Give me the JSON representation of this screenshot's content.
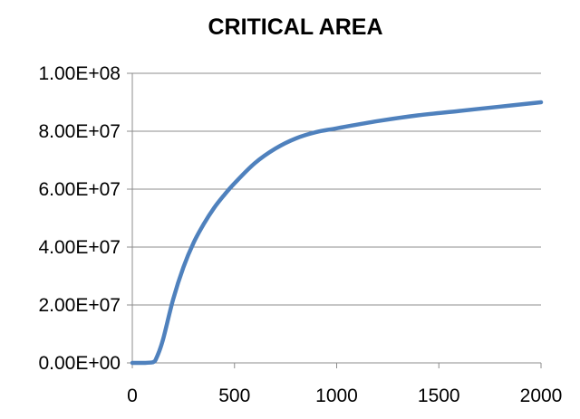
{
  "chart_data": {
    "type": "line",
    "title": "CRITICAL AREA",
    "xlabel": "",
    "ylabel": "",
    "xlim": [
      0,
      2000
    ],
    "ylim": [
      0,
      100000000
    ],
    "x_ticks": [
      0,
      500,
      1000,
      1500,
      2000
    ],
    "x_tick_labels": [
      "0",
      "500",
      "1000",
      "1500",
      "2000"
    ],
    "y_ticks": [
      0,
      20000000,
      40000000,
      60000000,
      80000000,
      100000000
    ],
    "y_tick_labels": [
      "0.00E+00",
      "2.00E+07",
      "4.00E+07",
      "6.00E+07",
      "8.00E+07",
      "1.00E+08"
    ],
    "grid": "horizontal",
    "legend": "none",
    "series_color": "#4f81bd",
    "series": [
      {
        "x": [
          0,
          50,
          100,
          120,
          150,
          200,
          250,
          300,
          350,
          400,
          450,
          500,
          600,
          700,
          800,
          900,
          1000,
          1200,
          1400,
          1600,
          1800,
          2000
        ],
        "y": [
          0,
          0,
          200000,
          2000000,
          8000000,
          22000000,
          33000000,
          41500000,
          48000000,
          53500000,
          58000000,
          62000000,
          69000000,
          74000000,
          77500000,
          79700000,
          81000000,
          83500000,
          85500000,
          87000000,
          88500000,
          90000000
        ]
      }
    ]
  }
}
